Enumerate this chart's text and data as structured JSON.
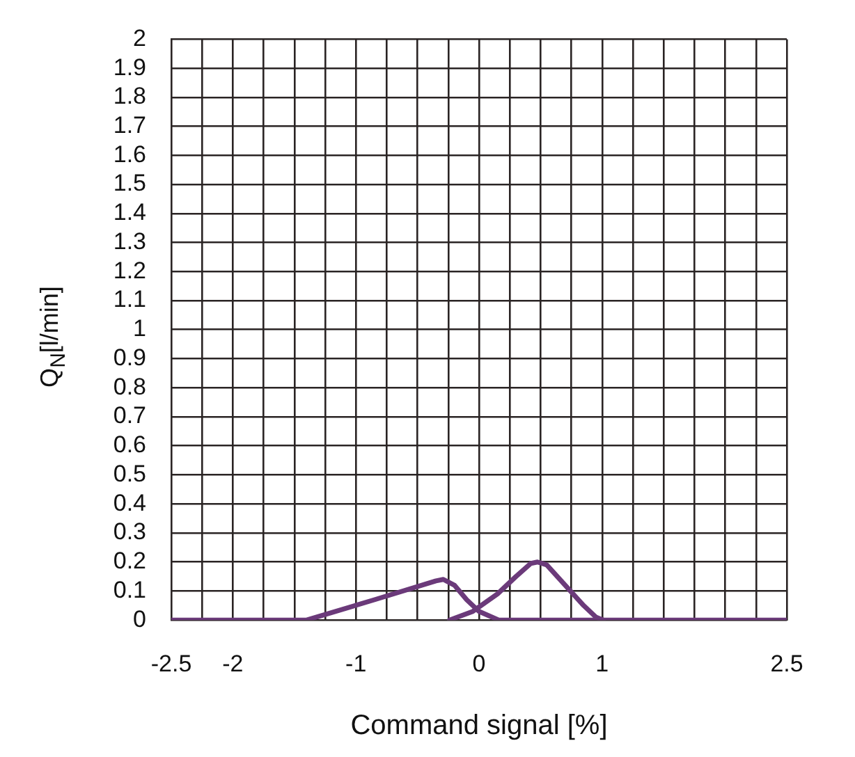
{
  "chart_data": {
    "type": "line",
    "xlabel": "Command signal [%]",
    "ylabel": "Q$_{N}$[l/min]",
    "xlim": [
      -2.5,
      2.5
    ],
    "xticks": [
      -2.5,
      {
        "value": -2.25,
        "label": null
      },
      -2,
      {
        "value": -1.75,
        "label": null
      },
      {
        "value": -1.5,
        "label": null
      },
      {
        "value": -1.25,
        "label": null
      },
      -1,
      {
        "value": -0.75,
        "label": null
      },
      {
        "value": -0.5,
        "label": null
      },
      {
        "value": -0.25,
        "label": null
      },
      0,
      {
        "value": 0.25,
        "label": null
      },
      {
        "value": 0.5,
        "label": null
      },
      {
        "value": 0.75,
        "label": null
      },
      1,
      {
        "value": 1.25,
        "label": null
      },
      {
        "value": 1.5,
        "label": null
      },
      {
        "value": 1.75,
        "label": null
      },
      {
        "value": 2,
        "label": null
      },
      {
        "value": 2.25,
        "label": null
      },
      2.5
    ],
    "ylim": [
      0,
      2
    ],
    "yticks": [
      0,
      0.1,
      0.2,
      0.3,
      0.4,
      0.5,
      0.6,
      0.7,
      0.8,
      0.9,
      1,
      1.1,
      1.2,
      1.3,
      1.4,
      1.5,
      1.6,
      1.7,
      1.8,
      1.9,
      2
    ],
    "grid": true,
    "marker": "none",
    "line_style": "solid",
    "series": [
      {
        "color": "#6b3a7a",
        "x": [
          -2.5,
          -1.4,
          -0.85,
          -0.35,
          -0.29,
          -0.2,
          -0.1,
          0,
          0.16,
          2.5
        ],
        "values": [
          0,
          0,
          0.07,
          0.135,
          0.14,
          0.12,
          0.07,
          0.03,
          0,
          0
        ]
      },
      {
        "color": "#6b3a7a",
        "x": [
          -0.24,
          -0.05,
          0.15,
          0.3,
          0.42,
          0.475,
          0.55,
          0.7,
          0.85,
          0.95,
          1.01
        ],
        "values": [
          0,
          0.03,
          0.09,
          0.15,
          0.195,
          0.2,
          0.19,
          0.12,
          0.05,
          0.01,
          0
        ]
      }
    ]
  }
}
